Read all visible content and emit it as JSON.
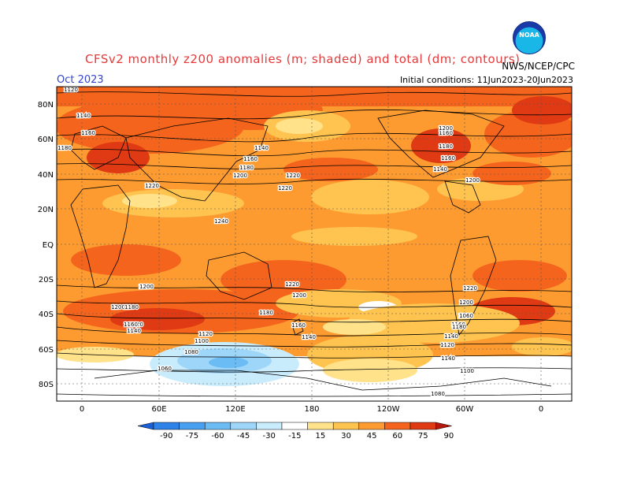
{
  "header": {
    "title": "CFSv2 monthly z200 anomalies (m; shaded) and total (dm; contours)",
    "month": "Oct 2023",
    "initial_conditions": "Initial conditions: 11Jun2023-20Jun2023",
    "organization": "NWS/NCEP/CPC",
    "logo_text": "NOAA"
  },
  "map": {
    "lat_labels": [
      "80N",
      "60N",
      "40N",
      "20N",
      "EQ",
      "20S",
      "40S",
      "60S",
      "80S"
    ],
    "lon_labels": [
      "0",
      "60E",
      "120E",
      "180",
      "120W",
      "60W",
      "0"
    ],
    "contour_labels": [
      "1120",
      "1140",
      "1160",
      "1180",
      "1200",
      "1220",
      "1240",
      "1120",
      "1140",
      "1160",
      "1180",
      "1200",
      "1220",
      "1240",
      "1140",
      "1160",
      "1180",
      "1200",
      "1220",
      "1220",
      "1220",
      "1200",
      "1180",
      "1160",
      "1140",
      "1120",
      "1100",
      "1080",
      "1060",
      "1200",
      "1180",
      "1160",
      "1140",
      "1220",
      "1200",
      "1180",
      "1160",
      "1140",
      "1120",
      "1100",
      "1080",
      "1060",
      "1180",
      "1160",
      "1140",
      "1200"
    ]
  },
  "colorbar": {
    "ticks": [
      "-90",
      "-75",
      "-60",
      "-45",
      "-30",
      "-15",
      "15",
      "30",
      "45",
      "60",
      "75",
      "90"
    ],
    "colors": [
      "#1a5fd6",
      "#2f82e8",
      "#4aa0f0",
      "#6bbbf5",
      "#9ed6fa",
      "#c9ecfd",
      "#ffffff",
      "#ffe28a",
      "#fec44f",
      "#fd9a30",
      "#f5641c",
      "#e03a14",
      "#b8170e"
    ]
  }
}
